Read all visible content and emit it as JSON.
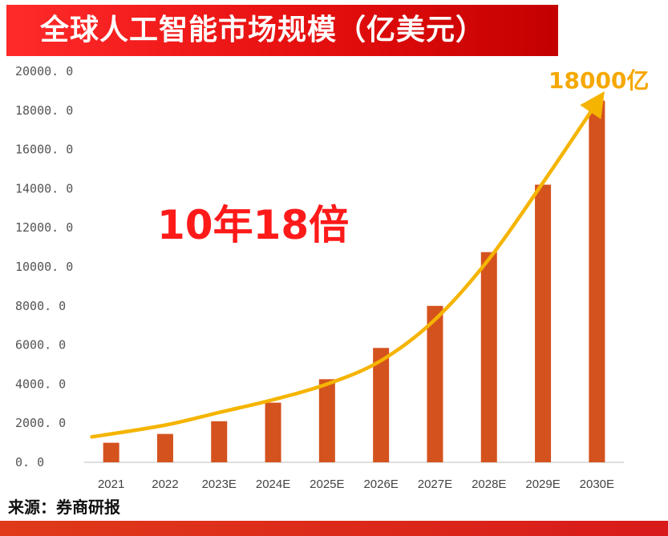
{
  "title": "全球人工智能市场规模（亿美元）",
  "source": "来源：券商研报",
  "colors": {
    "banner": "#e60f0f",
    "bar": "#d4521e",
    "curve": "#f5b400",
    "callout": "#ff1a1a",
    "end_label": "#f5a800"
  },
  "chart_data": {
    "type": "bar",
    "categories": [
      "2021",
      "2022",
      "2023E",
      "2024E",
      "2025E",
      "2026E",
      "2027E",
      "2028E",
      "2029E",
      "2030E"
    ],
    "values": [
      1000,
      1450,
      2100,
      3050,
      4250,
      5850,
      8000,
      10750,
      14200,
      18500
    ],
    "ylim": [
      0,
      20000
    ],
    "yticks": [
      "0. 0",
      "2000. 0",
      "4000. 0",
      "6000. 0",
      "8000. 0",
      "10000. 0",
      "12000. 0",
      "14000. 0",
      "16000. 0",
      "18000. 0",
      "20000. 0"
    ],
    "ytick_values": [
      0,
      2000,
      4000,
      6000,
      8000,
      10000,
      12000,
      14000,
      16000,
      18000,
      20000
    ],
    "grid": false,
    "trend_curve": {
      "values": [
        1300,
        1900,
        2550,
        3200,
        4000,
        5200,
        7300,
        10400,
        14300,
        18400
      ]
    },
    "annotations": {
      "callout": "10年18倍",
      "end_label": "18000亿"
    }
  }
}
